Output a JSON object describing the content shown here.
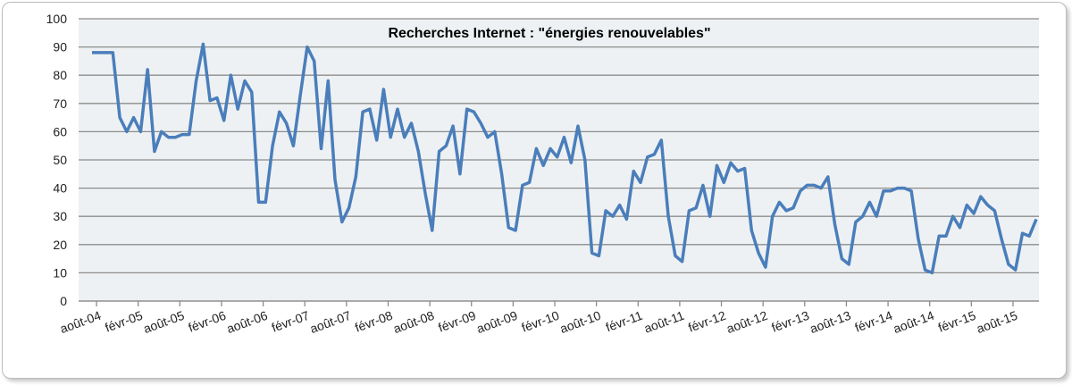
{
  "chart_data": {
    "type": "line",
    "title": "Recherches Internet : \"énergies renouvelables\"",
    "xlabel": "",
    "ylabel": "",
    "ylim": [
      0,
      100
    ],
    "yticks": [
      "0",
      "10",
      "20",
      "30",
      "40",
      "50",
      "60",
      "70",
      "80",
      "90",
      "100"
    ],
    "xtick_labels": [
      "août-04",
      "févr-05",
      "août-05",
      "févr-06",
      "août-06",
      "févr-07",
      "août-07",
      "févr-08",
      "août-08",
      "févr-09",
      "août-09",
      "févr-10",
      "août-10",
      "févr-11",
      "août-11",
      "févr-12",
      "août-12",
      "févr-13",
      "août-13",
      "févr-14",
      "août-14",
      "févr-15",
      "août-15"
    ],
    "grid": true,
    "legend": "none",
    "color": "#4a7ebb",
    "series": [
      {
        "name": "énergies renouvelables",
        "values": [
          88,
          88,
          88,
          88,
          65,
          60,
          65,
          60,
          82,
          53,
          60,
          58,
          58,
          59,
          59,
          78,
          91,
          71,
          72,
          64,
          80,
          68,
          78,
          74,
          35,
          35,
          55,
          67,
          63,
          55,
          73,
          90,
          85,
          54,
          78,
          43,
          28,
          33,
          44,
          67,
          68,
          57,
          75,
          58,
          68,
          58,
          63,
          53,
          38,
          25,
          53,
          55,
          62,
          45,
          68,
          67,
          63,
          58,
          60,
          45,
          26,
          25,
          41,
          42,
          54,
          48,
          54,
          51,
          58,
          49,
          62,
          50,
          17,
          16,
          32,
          30,
          34,
          29,
          46,
          42,
          51,
          52,
          57,
          30,
          16,
          14,
          32,
          33,
          41,
          30,
          48,
          42,
          49,
          46,
          47,
          25,
          17,
          12,
          30,
          35,
          32,
          33,
          39,
          41,
          41,
          40,
          44,
          27,
          15,
          13,
          28,
          30,
          35,
          30,
          39,
          39,
          40,
          40,
          39,
          22,
          11,
          10,
          23,
          23,
          30,
          26,
          34,
          31,
          37,
          34,
          32,
          22,
          13,
          11,
          24,
          23,
          29
        ]
      }
    ]
  }
}
